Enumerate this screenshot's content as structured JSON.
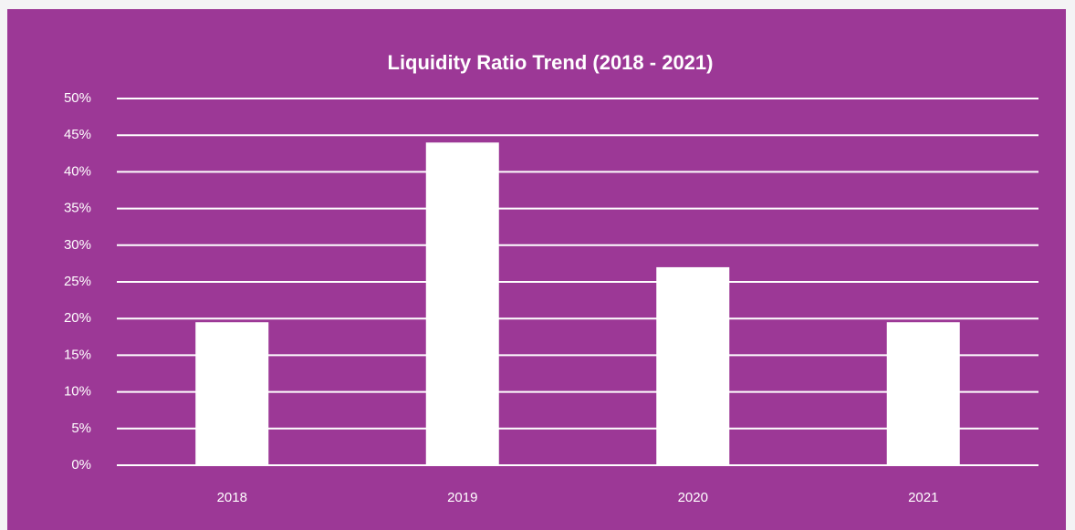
{
  "chart_data": {
    "type": "bar",
    "title": "Liquidity Ratio Trend (2018 - 2021)",
    "categories": [
      "2018",
      "2019",
      "2020",
      "2021"
    ],
    "values": [
      19.5,
      44,
      27,
      19.5
    ],
    "color": "#ffffff",
    "ylim": [
      0,
      50
    ],
    "yticks": [
      {
        "value": 0,
        "label": "0%"
      },
      {
        "value": 5,
        "label": "5%"
      },
      {
        "value": 10,
        "label": "10%"
      },
      {
        "value": 15,
        "label": "15%"
      },
      {
        "value": 20,
        "label": "20%"
      },
      {
        "value": 25,
        "label": "25%"
      },
      {
        "value": 30,
        "label": "30%"
      },
      {
        "value": 35,
        "label": "35%"
      },
      {
        "value": 40,
        "label": "40%"
      },
      {
        "value": 45,
        "label": "45%"
      },
      {
        "value": 50,
        "label": "50%"
      }
    ],
    "grid": true
  }
}
